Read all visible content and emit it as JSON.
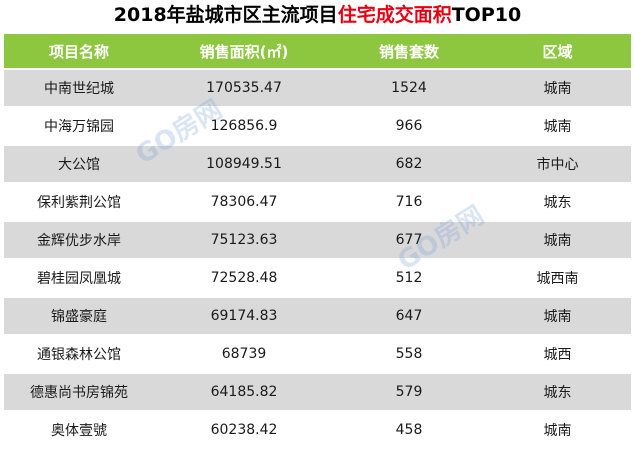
{
  "title": {
    "part1": "2018年盐城市区主流项目",
    "part2_highlight": "住宅成交面积",
    "part3": "TOP10",
    "highlight_color": "#e60012"
  },
  "table": {
    "header_color": "#8dc63f",
    "headers": [
      "项目名称",
      "销售面积(㎡)",
      "销售套数",
      "区域"
    ],
    "rows": [
      {
        "name": "中南世纪城",
        "area": "170535.47",
        "units": "1524",
        "region": "城南"
      },
      {
        "name": "中海万锦园",
        "area": "126856.9",
        "units": "966",
        "region": "城南"
      },
      {
        "name": "大公馆",
        "area": "108949.51",
        "units": "682",
        "region": "市中心"
      },
      {
        "name": "保利紫荆公馆",
        "area": "78306.47",
        "units": "716",
        "region": "城东"
      },
      {
        "name": "金辉优步水岸",
        "area": "75123.63",
        "units": "677",
        "region": "城南"
      },
      {
        "name": "碧桂园凤凰城",
        "area": "72528.48",
        "units": "512",
        "region": "城西南"
      },
      {
        "name": "锦盛豪庭",
        "area": "69174.83",
        "units": "647",
        "region": "城南"
      },
      {
        "name": "通银森林公馆",
        "area": "68739",
        "units": "558",
        "region": "城西"
      },
      {
        "name": "德惠尚书房锦苑",
        "area": "64185.82",
        "units": "579",
        "region": "城东"
      },
      {
        "name": "奥体壹號",
        "area": "60238.42",
        "units": "458",
        "region": "城南"
      }
    ]
  },
  "watermark": {
    "text": "GO房网"
  }
}
